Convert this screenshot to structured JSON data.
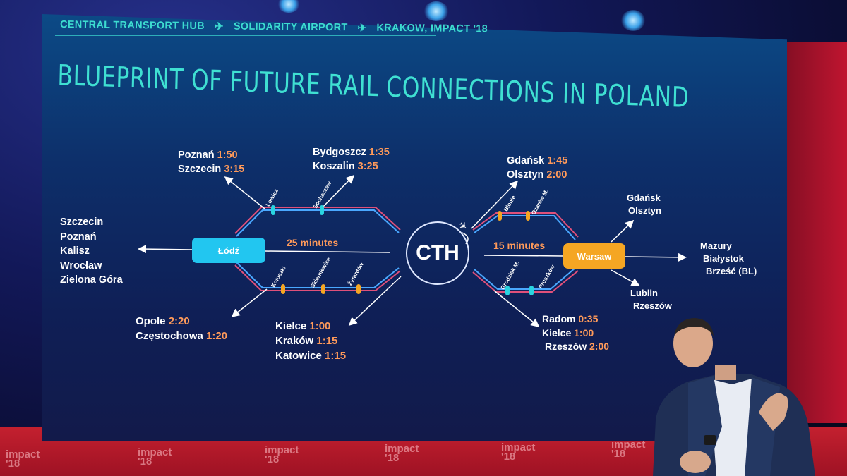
{
  "header": {
    "items": [
      "CENTRAL TRANSPORT HUB",
      "SOLIDARITY AIRPORT",
      "KRAKOW, IMPACT '18"
    ]
  },
  "title": "BLUEPRINT OF FUTURE RAIL CONNECTIONS IN POLAND",
  "hubs": {
    "cth": "CTH",
    "lodz": "Łódź",
    "warsaw": "Warsaw"
  },
  "durations": {
    "lodz_cth": "25 minutes",
    "cth_warsaw": "15 minutes"
  },
  "west_cities": [
    "Szczecin",
    "Poznań",
    "Kalisz",
    "Wrocław",
    "Zielona Góra"
  ],
  "east_cities": [
    "Mazury",
    "Białystok",
    "Brześć (BL)"
  ],
  "northeast_cities": [
    "Gdańsk",
    "Olsztyn"
  ],
  "southeast_cities": [
    "Lublin",
    "Rzeszów"
  ],
  "stations": {
    "lodz_north": [
      "Łowicz",
      "Sochaczew"
    ],
    "lodz_south": [
      "Koluszki",
      "Skierniewice",
      "Żyrardów"
    ],
    "warsaw_north": [
      "Błonie",
      "Ożarów M."
    ],
    "warsaw_south": [
      "Grodzisk M.",
      "Pruszków"
    ]
  },
  "connections": {
    "poznan_szczecin": [
      {
        "city": "Poznań",
        "time": "1:50"
      },
      {
        "city": "Szczecin",
        "time": "3:15"
      }
    ],
    "bydgoszcz_koszalin": [
      {
        "city": "Bydgoszcz",
        "time": "1:35"
      },
      {
        "city": "Koszalin",
        "time": "3:25"
      }
    ],
    "gdansk_olsztyn": [
      {
        "city": "Gdańsk",
        "time": "1:45"
      },
      {
        "city": "Olsztyn",
        "time": "2:00"
      }
    ],
    "opole_czestochowa": [
      {
        "city": "Opole",
        "time": "2:20"
      },
      {
        "city": "Częstochowa",
        "time": "1:20"
      }
    ],
    "kielce_krakow_katowice": [
      {
        "city": "Kielce",
        "time": "1:00"
      },
      {
        "city": "Kraków",
        "time": "1:15"
      },
      {
        "city": "Katowice",
        "time": "1:15"
      }
    ],
    "radom_kielce_rzeszow": [
      {
        "city": "Radom",
        "time": "0:35"
      },
      {
        "city": "Kielce",
        "time": "1:00"
      },
      {
        "city": "Rzeszów",
        "time": "2:00"
      }
    ]
  },
  "floor_logo": {
    "brand": "impact",
    "year": "'18"
  },
  "colors": {
    "accent_teal": "#3ddcd0",
    "lodz_hub": "#22c6f0",
    "warsaw_hub": "#f5a623",
    "time_text": "#ff9a5a",
    "track_pink": "#e0507a",
    "track_blue": "#4aa8ff",
    "stage_red": "#c4202f"
  },
  "icons": [
    "plane-icon",
    "arrow-icon"
  ]
}
